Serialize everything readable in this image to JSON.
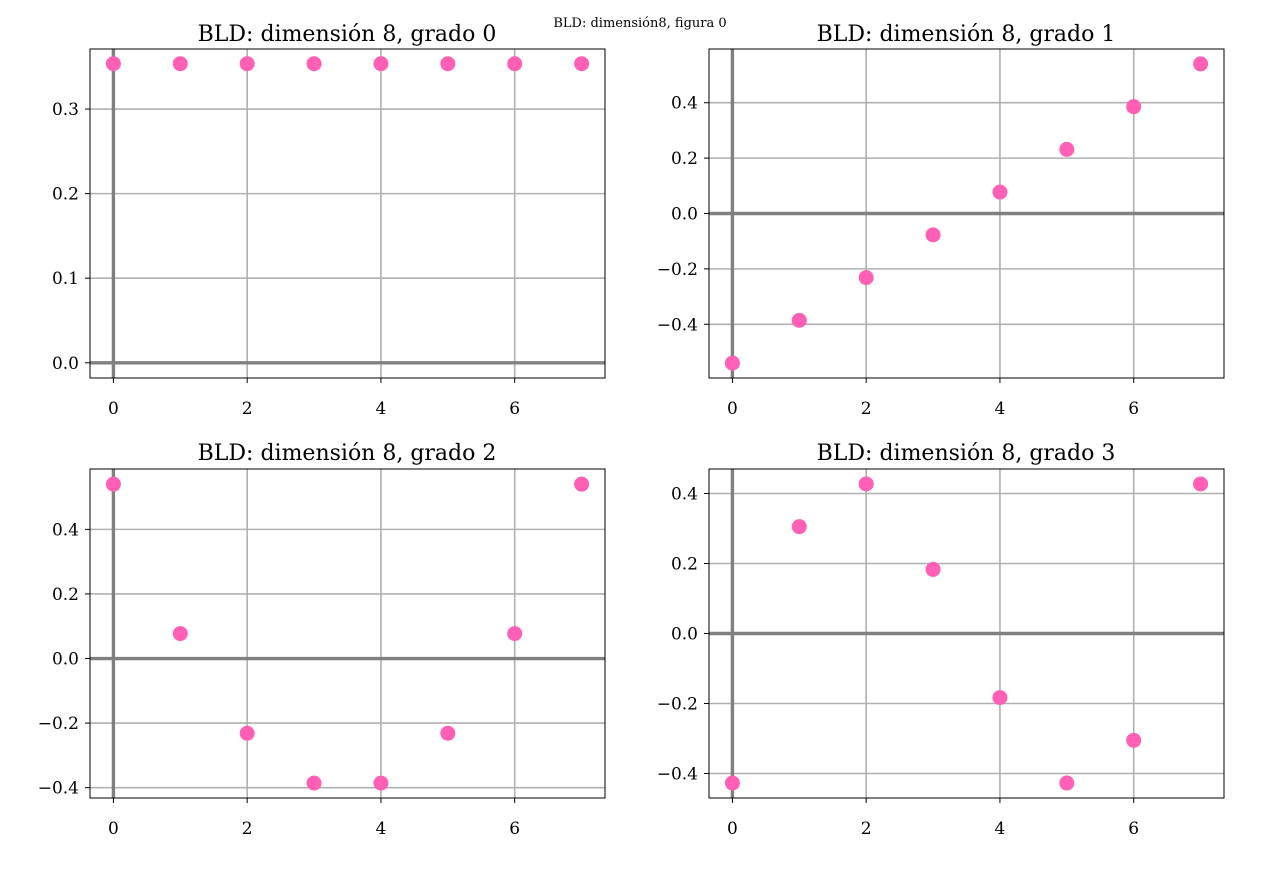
{
  "suptitle": "BLD: dimensión8, figura 0",
  "colors": {
    "marker": "#ff5fb4",
    "grid": "#b0b0b0",
    "axis_line": "#808080",
    "frame": "#000000"
  },
  "chart_data": [
    {
      "type": "scatter",
      "title": "BLD: dimensión 8, grado 0",
      "x": [
        0,
        1,
        2,
        3,
        4,
        5,
        6,
        7
      ],
      "y": [
        0.3536,
        0.3536,
        0.3536,
        0.3536,
        0.3536,
        0.3536,
        0.3536,
        0.3536
      ],
      "xlim": [
        -0.35,
        7.35
      ],
      "ylim": [
        -0.018,
        0.371
      ],
      "xticks": [
        0,
        2,
        4,
        6
      ],
      "yticks": [
        0.0,
        0.1,
        0.2,
        0.3
      ],
      "xticklabels": [
        "0",
        "2",
        "4",
        "6"
      ],
      "yticklabels": [
        "0.0",
        "0.1",
        "0.2",
        "0.3"
      ],
      "grid": true
    },
    {
      "type": "scatter",
      "title": "BLD: dimensión 8, grado 1",
      "x": [
        0,
        1,
        2,
        3,
        4,
        5,
        6,
        7
      ],
      "y": [
        -0.5401,
        -0.3858,
        -0.2315,
        -0.0772,
        0.0772,
        0.2315,
        0.3858,
        0.5401
      ],
      "xlim": [
        -0.35,
        7.35
      ],
      "ylim": [
        -0.594,
        0.594
      ],
      "xticks": [
        0,
        2,
        4,
        6
      ],
      "yticks": [
        -0.4,
        -0.2,
        0.0,
        0.2,
        0.4
      ],
      "xticklabels": [
        "0",
        "2",
        "4",
        "6"
      ],
      "yticklabels": [
        "−0.4",
        "−0.2",
        "0.0",
        "0.2",
        "0.4"
      ],
      "grid": true
    },
    {
      "type": "scatter",
      "title": "BLD: dimensión 8, grado 2",
      "x": [
        0,
        1,
        2,
        3,
        4,
        5,
        6,
        7
      ],
      "y": [
        0.5401,
        0.0772,
        -0.2315,
        -0.3858,
        -0.3858,
        -0.2315,
        0.0772,
        0.5401
      ],
      "xlim": [
        -0.35,
        7.35
      ],
      "ylim": [
        -0.432,
        0.587
      ],
      "xticks": [
        0,
        2,
        4,
        6
      ],
      "yticks": [
        -0.4,
        -0.2,
        0.0,
        0.2,
        0.4
      ],
      "xticklabels": [
        "0",
        "2",
        "4",
        "6"
      ],
      "yticklabels": [
        "−0.4",
        "−0.2",
        "0.0",
        "0.2",
        "0.4"
      ],
      "grid": true
    },
    {
      "type": "scatter",
      "title": "BLD: dimensión 8, grado 3",
      "x": [
        0,
        1,
        2,
        3,
        4,
        5,
        6,
        7
      ],
      "y": [
        -0.4272,
        0.3052,
        0.4272,
        0.1831,
        -0.1831,
        -0.4272,
        -0.3052,
        0.4272
      ],
      "xlim": [
        -0.35,
        7.35
      ],
      "ylim": [
        -0.47,
        0.47
      ],
      "xticks": [
        0,
        2,
        4,
        6
      ],
      "yticks": [
        -0.4,
        -0.2,
        0.0,
        0.2,
        0.4
      ],
      "xticklabels": [
        "0",
        "2",
        "4",
        "6"
      ],
      "yticklabels": [
        "−0.4",
        "−0.2",
        "0.0",
        "0.2",
        "0.4"
      ],
      "grid": true
    }
  ]
}
